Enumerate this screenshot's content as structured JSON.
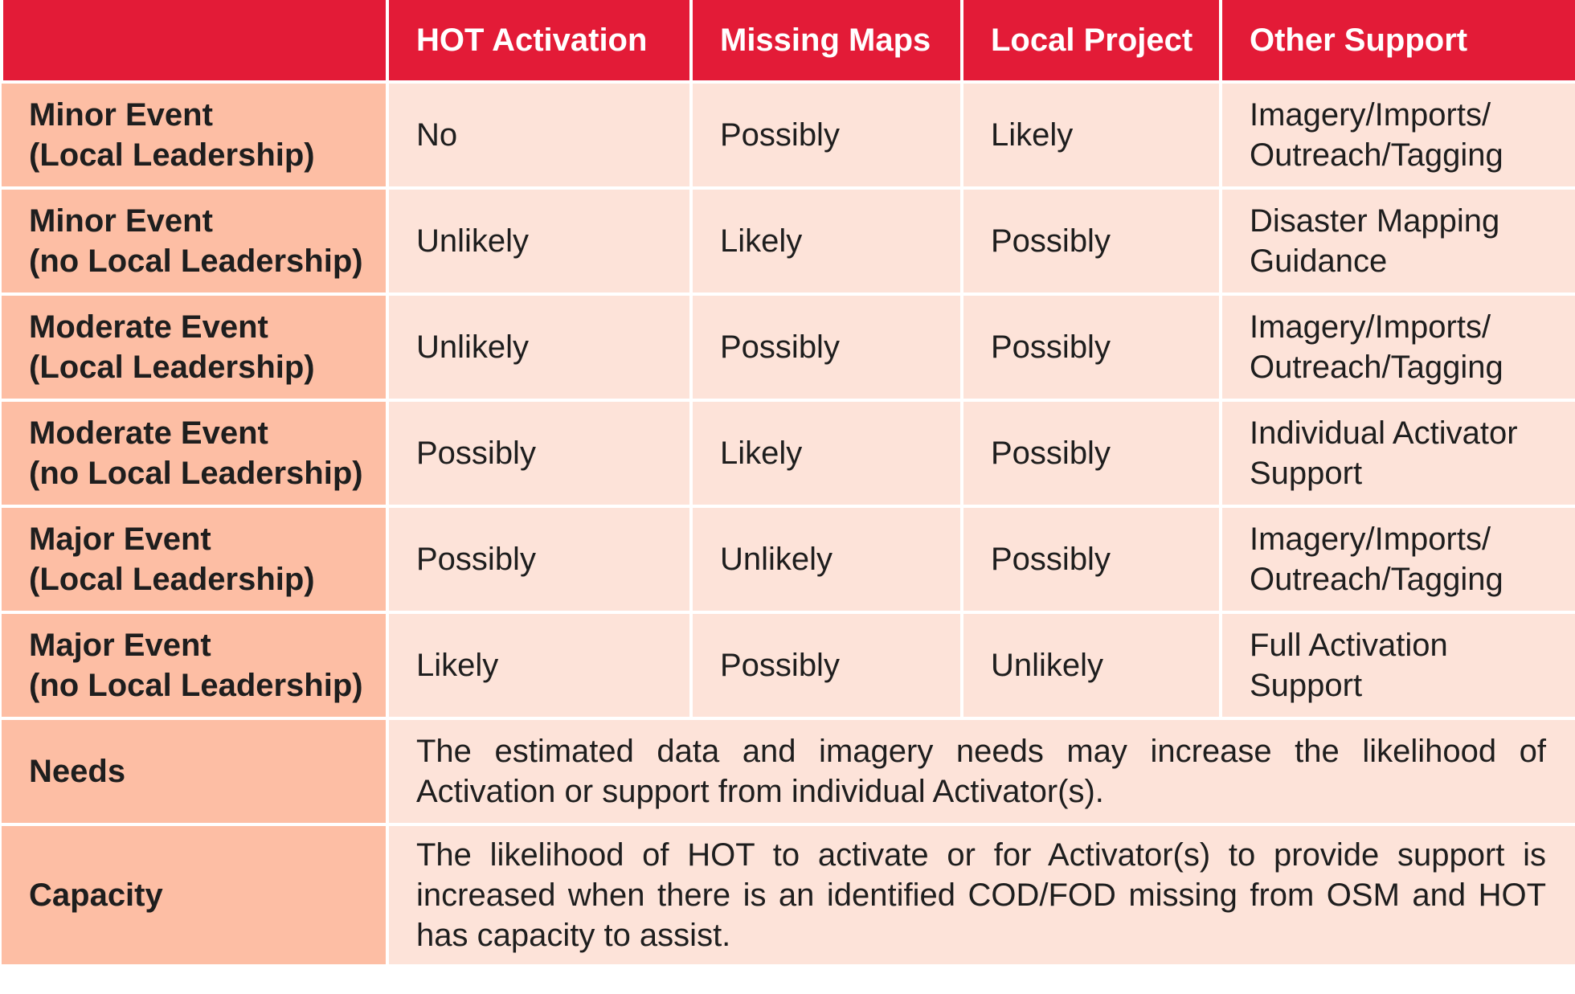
{
  "header": {
    "corner": "",
    "columns": [
      "HOT Activation",
      "Missing Maps",
      "Local Project",
      "Other Support"
    ]
  },
  "rows": [
    {
      "label_line1": "Minor Event",
      "label_line2": "(Local Leadership)",
      "hot": "No",
      "missing_maps": "Possibly",
      "local_project": "Likely",
      "other_line1": "Imagery/Imports/",
      "other_line2": "Outreach/Tagging"
    },
    {
      "label_line1": "Minor Event",
      "label_line2": "(no Local Leadership)",
      "hot": "Unlikely",
      "missing_maps": "Likely",
      "local_project": "Possibly",
      "other_line1": "Disaster Mapping",
      "other_line2": "Guidance"
    },
    {
      "label_line1": "Moderate Event",
      "label_line2": "(Local Leadership)",
      "hot": "Unlikely",
      "missing_maps": "Possibly",
      "local_project": "Possibly",
      "other_line1": "Imagery/Imports/",
      "other_line2": "Outreach/Tagging"
    },
    {
      "label_line1": "Moderate Event",
      "label_line2": "(no Local Leadership)",
      "hot": "Possibly",
      "missing_maps": "Likely",
      "local_project": "Possibly",
      "other_line1": "Individual Activator",
      "other_line2": "Support"
    },
    {
      "label_line1": "Major Event",
      "label_line2": "(Local Leadership)",
      "hot": "Possibly",
      "missing_maps": "Unlikely",
      "local_project": "Possibly",
      "other_line1": "Imagery/Imports/",
      "other_line2": "Outreach/Tagging"
    },
    {
      "label_line1": "Major Event",
      "label_line2": "(no Local Leadership)",
      "hot": "Likely",
      "missing_maps": "Possibly",
      "local_project": "Unlikely",
      "other_line1": "Full Activation",
      "other_line2": "Support"
    }
  ],
  "needs": {
    "label": "Needs",
    "text": "The estimated data and imagery needs may increase the likelihood of Activation or support from individual Activator(s)."
  },
  "capacity": {
    "label": "Capacity",
    "text": "The likelihood of HOT to activate or for Activator(s) to provide support is increased when there is an identified COD/FOD missing from OSM and HOT has capacity to assist."
  },
  "colors": {
    "header_bg": "#e31b37",
    "label_bg": "#fdbea4",
    "cell_bg": "#fde3d9",
    "header_text": "#ffffff",
    "body_text": "#1e1e1e"
  }
}
